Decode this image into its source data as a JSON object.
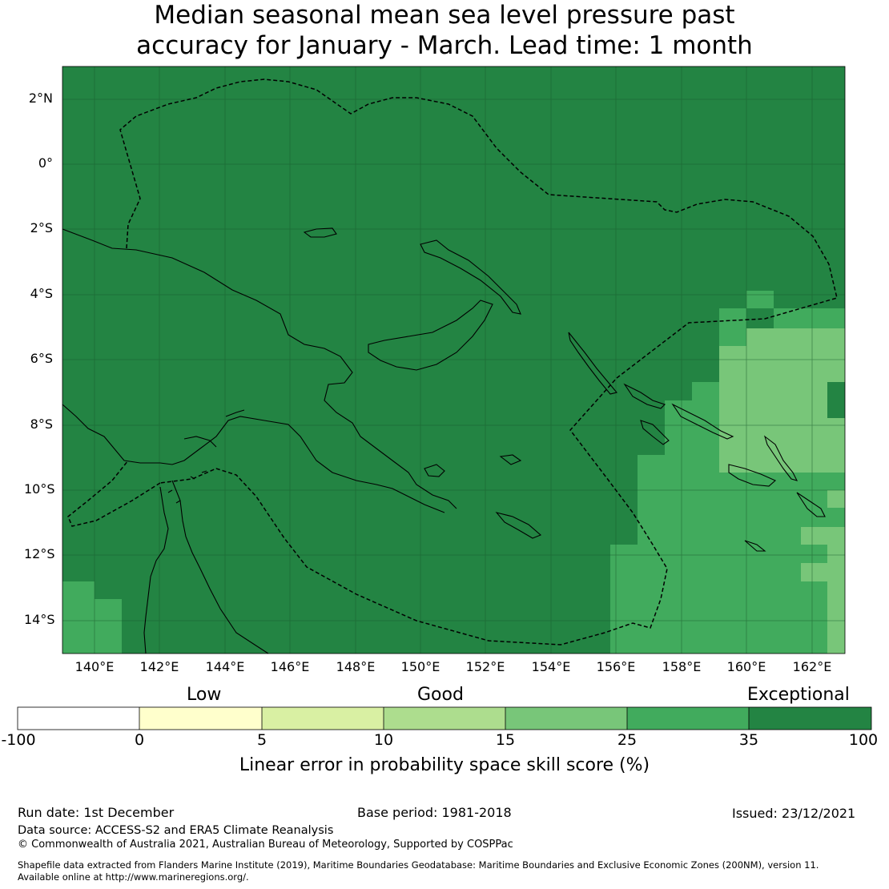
{
  "title": {
    "line1": "Median seasonal mean sea level pressure past",
    "line2": "accuracy for January - March. Lead time: 1 month"
  },
  "map": {
    "lat_labels": [
      "2°N",
      "0°",
      "2°S",
      "4°S",
      "6°S",
      "8°S",
      "10°S",
      "12°S",
      "14°S"
    ],
    "lon_labels": [
      "140°E",
      "142°E",
      "144°E",
      "146°E",
      "148°E",
      "150°E",
      "152°E",
      "154°E",
      "156°E",
      "158°E",
      "160°E",
      "162°E"
    ],
    "extent": {
      "lon_min": 139.0,
      "lon_max": 163.0,
      "lat_min": -15.0,
      "lat_max": 3.0
    },
    "colors": {
      "exceptional": "#238443",
      "band_25_35": "#41ab5d",
      "band_15_25": "#78c679",
      "band_10_15": "#addd8e",
      "band_5_10": "#d9f0a3",
      "band_0_5": "#ffffcc",
      "band_neg": "#ffffff",
      "coast": "#000000",
      "eez": "#000000"
    }
  },
  "legend": {
    "category_labels": [
      "Low",
      "Good",
      "Exceptional"
    ],
    "tick_labels": [
      "-100",
      "0",
      "5",
      "10",
      "15",
      "25",
      "35",
      "100"
    ],
    "colors": [
      "#ffffff",
      "#ffffcc",
      "#d9f0a3",
      "#addd8e",
      "#78c679",
      "#41ab5d",
      "#238443"
    ],
    "axis_title": "Linear error in probability space skill score (%)"
  },
  "footer": {
    "run_date": "Run date: 1st December",
    "base_period": "Base period: 1981-2018",
    "issued": "Issued: 23/12/2021",
    "data_source": "Data source: ACCESS-S2 and ERA5 Climate Reanalysis",
    "copyright": "© Commonwealth of Australia 2021, Australian Bureau of Meteorology, Supported by COSPPac",
    "shapefile_line1": "Shapefile data extracted from Flanders Marine Institute (2019), Maritime Boundaries Geodatabase: Maritime Boundaries and Exclusive Economic Zones (200NM), version 11.",
    "shapefile_line2": "Available online at http://www.marineregions.org/."
  }
}
